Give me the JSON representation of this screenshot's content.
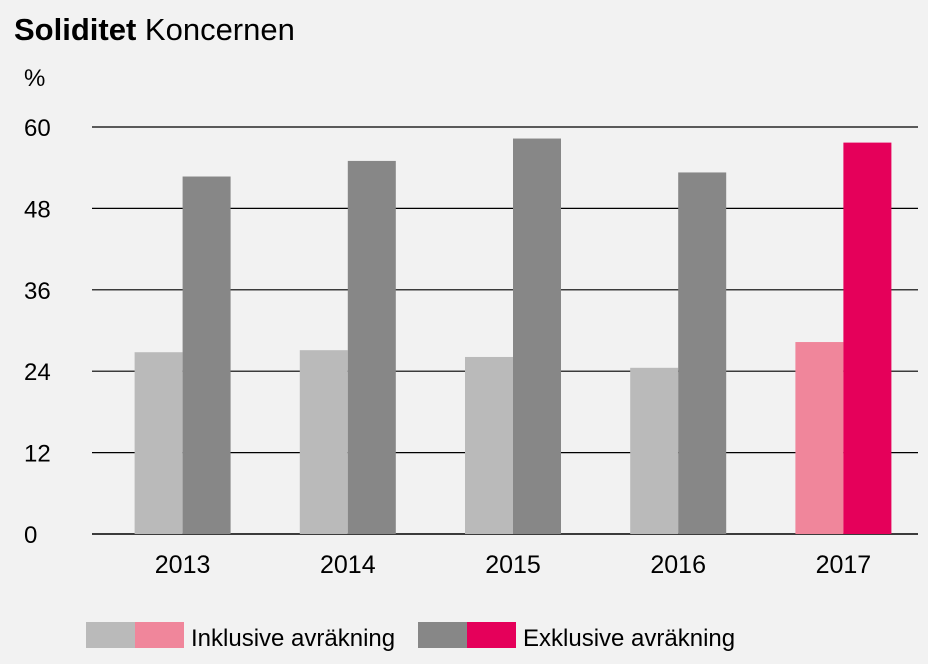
{
  "chart_data": {
    "type": "bar",
    "title_bold": "Soliditet",
    "title_rest": "Koncernen",
    "ylabel": "%",
    "xlabel": "",
    "ylim": [
      0,
      60
    ],
    "yticks": [
      0,
      12,
      24,
      36,
      48,
      60
    ],
    "categories": [
      "2013",
      "2014",
      "2015",
      "2016",
      "2017"
    ],
    "series": [
      {
        "name": "Inklusive avräkning",
        "values": [
          26.8,
          27.1,
          26.1,
          24.5,
          28.3
        ],
        "color": "#bababa",
        "highlight_color": "#f0869b"
      },
      {
        "name": "Exklusive avräkning",
        "values": [
          52.7,
          55.0,
          58.3,
          53.3,
          57.7
        ],
        "color": "#878787",
        "highlight_color": "#e5005a"
      }
    ],
    "highlight_category": "2017",
    "grid": true,
    "legend_position": "bottom"
  }
}
